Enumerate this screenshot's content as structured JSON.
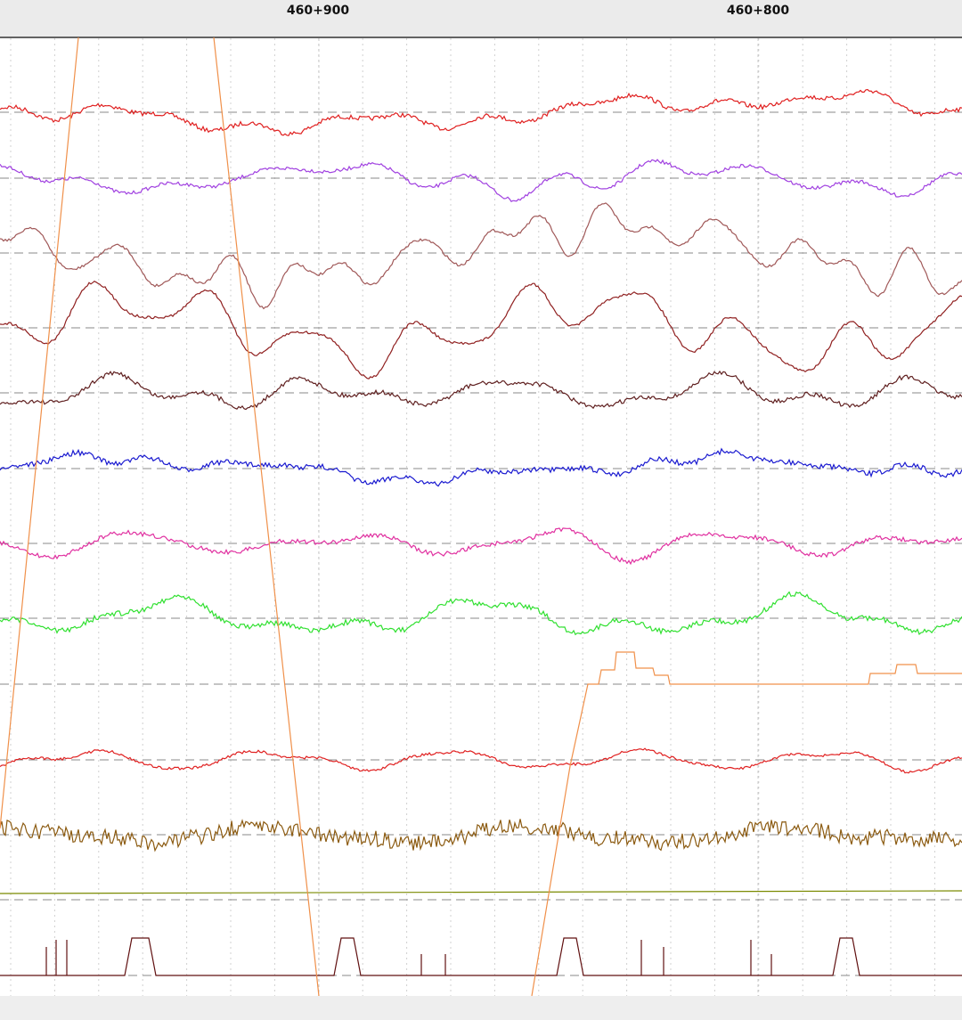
{
  "header": {
    "markers": [
      "460+900",
      "460+800"
    ]
  }
}
